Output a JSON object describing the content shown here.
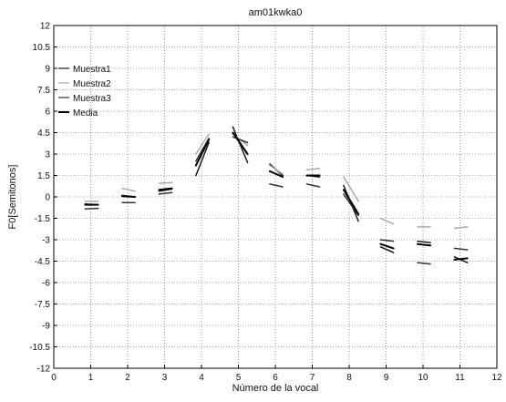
{
  "chart_data": {
    "type": "line",
    "title": "am01kwka0",
    "xlabel": "Número de la vocal",
    "ylabel": "F0[Semitonos]",
    "xlim": [
      0,
      12
    ],
    "ylim": [
      -12,
      12
    ],
    "grid": true,
    "legend_placement": "top-left",
    "xticks": [
      "0",
      "1",
      "2",
      "3",
      "4",
      "5",
      "6",
      "7",
      "8",
      "9",
      "10",
      "11",
      "12"
    ],
    "yticks": [
      "12",
      "10.5",
      "9",
      "7.5",
      "6",
      "4.5",
      "3",
      "1.5",
      "0",
      "-1.5",
      "-3",
      "-4.5",
      "-6",
      "-7.5",
      "-9",
      "-10.5",
      "-12"
    ],
    "legend": [
      {
        "name": "Muestra1",
        "color": "#1a1a1a",
        "width": 1.2
      },
      {
        "name": "Muestra2",
        "color": "#aaaaaa",
        "width": 1.2
      },
      {
        "name": "Muestra3",
        "color": "#333333",
        "width": 1.2
      },
      {
        "name": "Media",
        "color": "#000000",
        "width": 2
      }
    ],
    "series": [
      {
        "name": "Muestra1",
        "color": "#1a1a1a",
        "segments": [
          [
            [
              0.85,
              -0.5
            ],
            [
              1.2,
              -0.55
            ]
          ],
          [
            [
              1.85,
              0.1
            ],
            [
              2.2,
              0.0
            ]
          ],
          [
            [
              2.85,
              0.4
            ],
            [
              3.2,
              0.55
            ]
          ],
          [
            [
              3.85,
              1.5
            ],
            [
              4.2,
              3.8
            ]
          ],
          [
            [
              4.85,
              4.9
            ],
            [
              5.25,
              2.4
            ]
          ],
          [
            [
              5.85,
              2.3
            ],
            [
              6.2,
              1.5
            ]
          ],
          [
            [
              6.85,
              1.5
            ],
            [
              7.2,
              1.4
            ]
          ],
          [
            [
              7.85,
              0.8
            ],
            [
              8.25,
              -1.7
            ]
          ],
          [
            [
              8.85,
              -3.5
            ],
            [
              9.2,
              -3.9
            ]
          ],
          [
            [
              9.85,
              -3.1
            ],
            [
              10.2,
              -3.2
            ]
          ],
          [
            [
              10.85,
              -4.2
            ],
            [
              11.2,
              -4.6
            ]
          ]
        ]
      },
      {
        "name": "Muestra2",
        "color": "#aaaaaa",
        "segments": [
          [
            [
              0.85,
              -0.3
            ],
            [
              1.2,
              -0.3
            ]
          ],
          [
            [
              1.85,
              0.6
            ],
            [
              2.2,
              0.4
            ]
          ],
          [
            [
              2.85,
              0.95
            ],
            [
              3.2,
              1.0
            ]
          ],
          [
            [
              3.85,
              3.0
            ],
            [
              4.2,
              4.4
            ]
          ],
          [
            [
              4.85,
              4.4
            ],
            [
              5.25,
              3.6
            ]
          ],
          [
            [
              5.85,
              2.2
            ],
            [
              6.2,
              1.6
            ]
          ],
          [
            [
              6.85,
              1.9
            ],
            [
              7.2,
              2.0
            ]
          ],
          [
            [
              7.85,
              1.4
            ],
            [
              8.25,
              -0.3
            ]
          ],
          [
            [
              8.85,
              -1.5
            ],
            [
              9.2,
              -1.9
            ]
          ],
          [
            [
              9.85,
              -2.1
            ],
            [
              10.2,
              -2.1
            ]
          ],
          [
            [
              10.85,
              -2.2
            ],
            [
              11.2,
              -2.1
            ]
          ]
        ]
      },
      {
        "name": "Muestra3",
        "color": "#333333",
        "segments": [
          [
            [
              0.85,
              -0.85
            ],
            [
              1.2,
              -0.8
            ]
          ],
          [
            [
              1.85,
              -0.4
            ],
            [
              2.2,
              -0.4
            ]
          ],
          [
            [
              2.85,
              0.2
            ],
            [
              3.2,
              0.3
            ]
          ],
          [
            [
              3.85,
              2.5
            ],
            [
              4.2,
              4.1
            ]
          ],
          [
            [
              4.85,
              4.2
            ],
            [
              5.25,
              3.8
            ]
          ],
          [
            [
              5.85,
              0.9
            ],
            [
              6.2,
              0.7
            ]
          ],
          [
            [
              6.85,
              0.9
            ],
            [
              7.2,
              0.7
            ]
          ],
          [
            [
              7.85,
              0.2
            ],
            [
              8.25,
              -1.3
            ]
          ],
          [
            [
              8.85,
              -3.0
            ],
            [
              9.2,
              -3.1
            ]
          ],
          [
            [
              9.85,
              -4.6
            ],
            [
              10.2,
              -4.7
            ]
          ],
          [
            [
              10.85,
              -3.6
            ],
            [
              11.2,
              -3.7
            ]
          ]
        ]
      },
      {
        "name": "Media",
        "color": "#000000",
        "segments": [
          [
            [
              0.85,
              -0.55
            ],
            [
              1.2,
              -0.55
            ]
          ],
          [
            [
              1.85,
              0.05
            ],
            [
              2.2,
              0.0
            ]
          ],
          [
            [
              2.85,
              0.5
            ],
            [
              3.2,
              0.6
            ]
          ],
          [
            [
              3.85,
              2.2
            ],
            [
              4.2,
              4.0
            ]
          ],
          [
            [
              4.85,
              4.5
            ],
            [
              5.25,
              3.0
            ]
          ],
          [
            [
              5.85,
              1.8
            ],
            [
              6.2,
              1.4
            ]
          ],
          [
            [
              6.85,
              1.5
            ],
            [
              7.2,
              1.5
            ]
          ],
          [
            [
              7.85,
              0.5
            ],
            [
              8.25,
              -1.2
            ]
          ],
          [
            [
              8.85,
              -3.3
            ],
            [
              9.2,
              -3.6
            ]
          ],
          [
            [
              9.85,
              -3.3
            ],
            [
              10.2,
              -3.4
            ]
          ],
          [
            [
              10.85,
              -4.4
            ],
            [
              11.2,
              -4.3
            ]
          ]
        ]
      }
    ]
  }
}
